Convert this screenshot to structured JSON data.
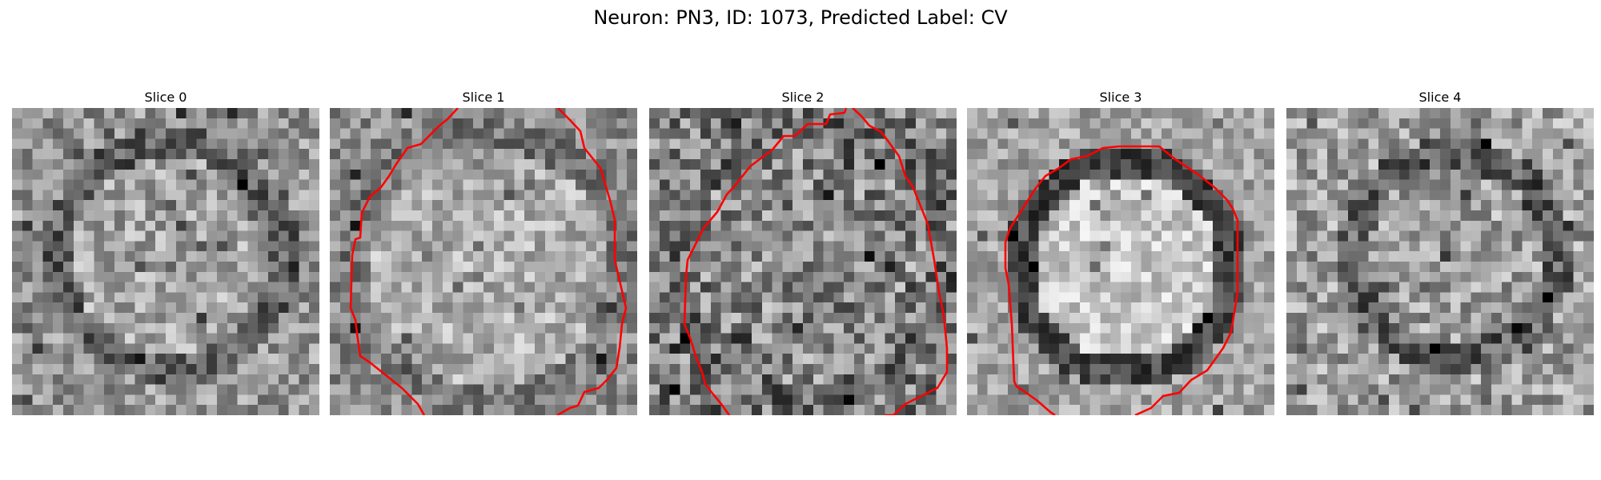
{
  "figure": {
    "title": "Neuron: PN3, ID: 1073, Predicted Label: CV"
  },
  "panels": [
    {
      "title": "Slice 0",
      "has_contour": false
    },
    {
      "title": "Slice 1",
      "has_contour": true
    },
    {
      "title": "Slice 2",
      "has_contour": true
    },
    {
      "title": "Slice 3",
      "has_contour": true
    },
    {
      "title": "Slice 4",
      "has_contour": false
    }
  ],
  "style": {
    "contour_color": "#ff0000",
    "colormap": "grayscale"
  }
}
